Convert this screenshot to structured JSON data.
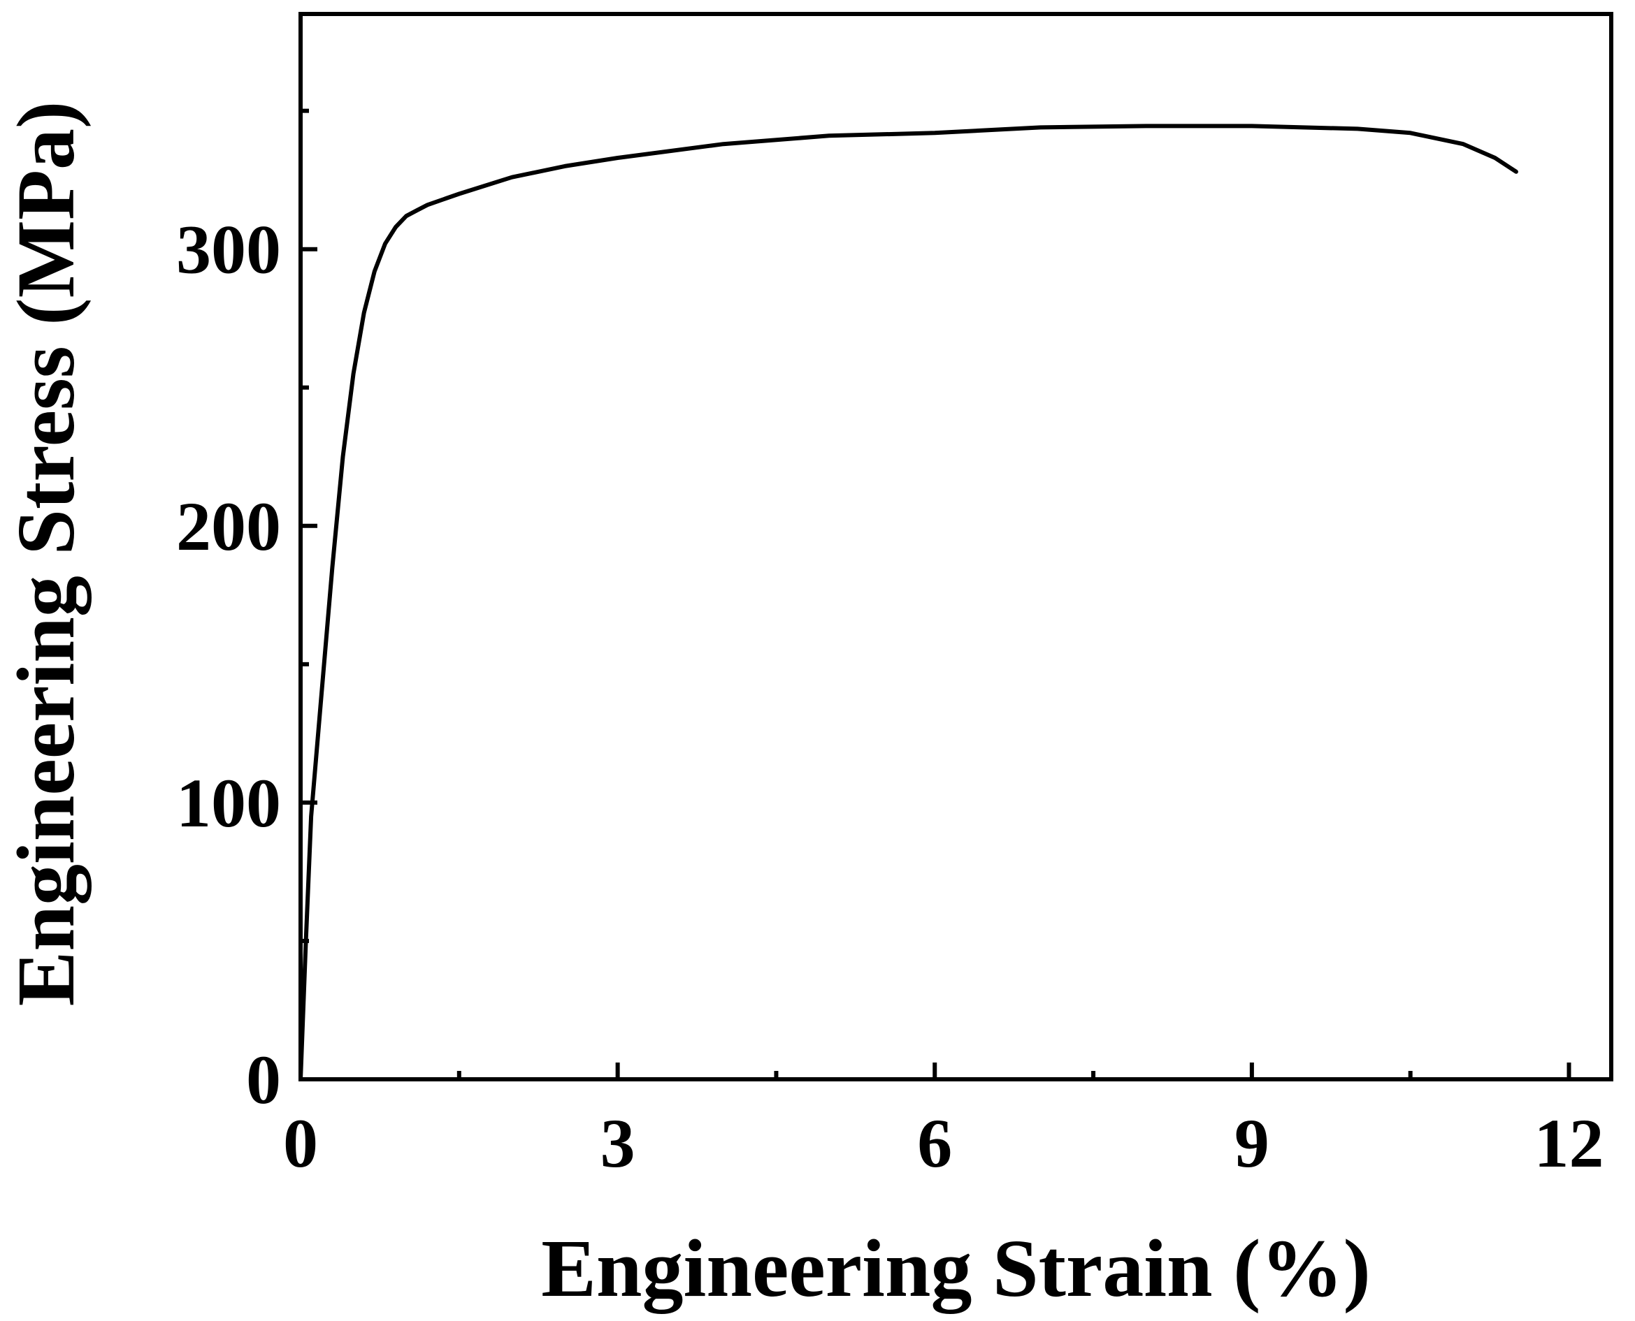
{
  "chart_data": {
    "type": "line",
    "title": "",
    "xlabel": "Engineering Strain (%)",
    "ylabel": "Engineering Stress (MPa)",
    "xlim": [
      0,
      12.4
    ],
    "ylim": [
      0,
      385
    ],
    "xticks": [
      0,
      3,
      6,
      9,
      12
    ],
    "xtick_labels": [
      "0",
      "3",
      "6",
      "9",
      "12"
    ],
    "x_minor_ticks": [
      1.5,
      4.5,
      7.5,
      10.5
    ],
    "yticks": [
      0,
      100,
      200,
      300
    ],
    "ytick_labels": [
      "0",
      "100",
      "200",
      "300"
    ],
    "y_minor_ticks": [
      50,
      150,
      250,
      350
    ],
    "grid": false,
    "legend": "none",
    "line_color": "#000000",
    "series": [
      {
        "x": [
          0,
          0.05,
          0.1,
          0.2,
          0.3,
          0.4,
          0.5,
          0.6,
          0.7,
          0.8,
          0.9,
          1.0,
          1.1,
          1.2,
          1.5,
          2.0,
          2.5,
          3.0,
          4.0,
          5.0,
          6.0,
          7.0,
          8.0,
          9.0,
          10.0,
          10.5,
          11.0,
          11.3,
          11.5
        ],
        "y": [
          0,
          50,
          95,
          140,
          185,
          225,
          255,
          277,
          292,
          302,
          308,
          312,
          314,
          316,
          320,
          326,
          330,
          333,
          338,
          341,
          342,
          344,
          344.5,
          344.5,
          343.5,
          342,
          338,
          333,
          328
        ]
      }
    ]
  }
}
